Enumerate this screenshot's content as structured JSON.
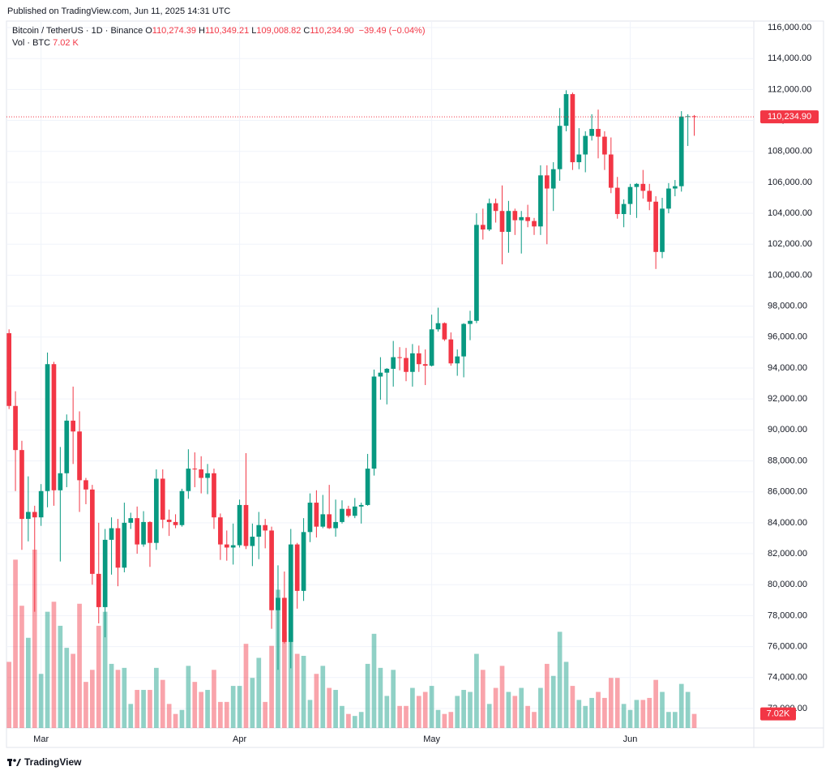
{
  "chart_data": {
    "type": "candlestick",
    "published": "Published on TradingView.com, Jun 11, 2025 14:31 UTC",
    "title": "Bitcoin / TetherUS · 1D · Binance",
    "ohlc_legend": [
      {
        "key": "O",
        "value": 110274.39,
        "label": "110,274.39"
      },
      {
        "key": "H",
        "value": 110349.21,
        "label": "110,349.21"
      },
      {
        "key": "L",
        "value": 109008.82,
        "label": "109,008.82"
      },
      {
        "key": "C",
        "value": 110234.9,
        "label": "110,234.90"
      }
    ],
    "change": {
      "value": -39.49,
      "label": "−39.49"
    },
    "change_pct": {
      "value": -0.04,
      "label": "(−0.04%)"
    },
    "volume_title": "Vol · BTC",
    "volume_label": {
      "value": 7.02,
      "label": "7.02 K"
    },
    "volume_axis_label": {
      "value": 7.02,
      "label": "7.02K"
    },
    "brand": "TradingView",
    "up_color": "#089981",
    "down_color": "#f23645",
    "grid": true,
    "xlim": [
      -0.4,
      116.3
    ],
    "xticks": [
      {
        "value": 5,
        "label": "Mar"
      },
      {
        "value": 36,
        "label": "Apr"
      },
      {
        "value": 66,
        "label": "May"
      },
      {
        "value": 97,
        "label": "Jun"
      }
    ],
    "ylim": [
      70740,
      116420
    ],
    "yticks": [
      {
        "value": 72000,
        "label": "72,000.00"
      },
      {
        "value": 74000,
        "label": "74,000.00"
      },
      {
        "value": 76000,
        "label": "76,000.00"
      },
      {
        "value": 78000,
        "label": "78,000.00"
      },
      {
        "value": 80000,
        "label": "80,000.00"
      },
      {
        "value": 82000,
        "label": "82,000.00"
      },
      {
        "value": 84000,
        "label": "84,000.00"
      },
      {
        "value": 86000,
        "label": "86,000.00"
      },
      {
        "value": 88000,
        "label": "88,000.00"
      },
      {
        "value": 90000,
        "label": "90,000.00"
      },
      {
        "value": 92000,
        "label": "92,000.00"
      },
      {
        "value": 94000,
        "label": "94,000.00"
      },
      {
        "value": 96000,
        "label": "96,000.00"
      },
      {
        "value": 98000,
        "label": "98,000.00"
      },
      {
        "value": 100000,
        "label": "100,000.00"
      },
      {
        "value": 102000,
        "label": "102,000.00"
      },
      {
        "value": 104000,
        "label": "104,000.00"
      },
      {
        "value": 106000,
        "label": "106,000.00"
      },
      {
        "value": 108000,
        "label": "108,000.00"
      },
      {
        "value": 110000,
        "label": "110,000.00"
      },
      {
        "value": 112000,
        "label": "112,000.00"
      },
      {
        "value": 114000,
        "label": "114,000.00"
      },
      {
        "value": 116000,
        "label": "116,000.00"
      }
    ],
    "open": [
      96250,
      91550,
      88700,
      84250,
      84700,
      84350,
      86050,
      94250,
      86100,
      87200,
      90600,
      89900,
      86750,
      86150,
      80700,
      78550,
      82900,
      83650,
      81100,
      84000,
      84300,
      82600,
      84050,
      82700,
      86850,
      84200,
      84050,
      83850,
      86050,
      87500,
      87450,
      86900,
      87200,
      84350,
      82600,
      82400,
      82550,
      85150,
      82500,
      83100,
      83850,
      83500,
      78350,
      79150,
      76300,
      82600,
      79600,
      83400,
      85300,
      83750,
      84550,
      83650,
      84050,
      84900,
      84450,
      85050,
      85150,
      87500,
      93450,
      93700,
      93950,
      94700,
      94650,
      93750,
      94950,
      94250,
      94150,
      96500,
      96900,
      95850,
      94300,
      94750,
      96850,
      97050,
      103250,
      102950,
      104650,
      104150,
      102800,
      104150,
      103550,
      103750,
      103500,
      103150,
      106450,
      105600,
      106850,
      109650,
      111700,
      107300,
      107800,
      109000,
      109450,
      108950,
      107800,
      105650,
      103950,
      104600,
      105700,
      105900,
      105450,
      104750,
      101500,
      104300,
      105600,
      105750,
      110250,
      110274.39
    ],
    "high": [
      96500,
      92500,
      89300,
      87000,
      85100,
      86500,
      95000,
      94400,
      88900,
      91000,
      92800,
      91200,
      86900,
      86450,
      84000,
      83600,
      84350,
      84250,
      85300,
      84650,
      85050,
      84750,
      84100,
      87450,
      87450,
      84850,
      84550,
      86200,
      88750,
      88550,
      88300,
      87800,
      87500,
      84600,
      83500,
      83950,
      85500,
      88500,
      83950,
      84700,
      84250,
      83750,
      81250,
      80850,
      83600,
      82700,
      84300,
      85900,
      86100,
      85800,
      86450,
      85500,
      85450,
      85100,
      85600,
      85300,
      88450,
      93900,
      94700,
      94000,
      95750,
      95350,
      95300,
      95550,
      95450,
      95200,
      97450,
      97900,
      96950,
      96300,
      95200,
      96900,
      97700,
      104000,
      104300,
      104950,
      104950,
      105800,
      104800,
      104300,
      104150,
      104550,
      103700,
      107100,
      107100,
      107300,
      110800,
      111950,
      111800,
      109500,
      109300,
      110400,
      110700,
      109300,
      108900,
      106350,
      104900,
      105900,
      105950,
      106800,
      105900,
      105100,
      105000,
      105950,
      106150,
      110600,
      110400,
      110349.21
    ],
    "low": [
      91350,
      86050,
      82250,
      82800,
      78250,
      83800,
      85000,
      85100,
      81500,
      86300,
      87800,
      84700,
      85200,
      80000,
      77500,
      76600,
      80650,
      79900,
      80800,
      83600,
      82000,
      82450,
      81150,
      82250,
      83650,
      83150,
      83650,
      83750,
      85550,
      86300,
      85900,
      85850,
      83600,
      81600,
      81550,
      81300,
      82400,
      82300,
      81200,
      81650,
      82350,
      77150,
      74500,
      76200,
      74600,
      78450,
      78950,
      82750,
      83050,
      83650,
      83600,
      83100,
      83950,
      84350,
      84300,
      83950,
      85100,
      87050,
      91950,
      91650,
      92800,
      93850,
      93150,
      92800,
      93750,
      92900,
      94100,
      96350,
      95750,
      94150,
      93500,
      93400,
      95800,
      96900,
      102300,
      102850,
      103400,
      100700,
      101450,
      102600,
      101400,
      103100,
      102600,
      102600,
      102000,
      104150,
      106100,
      109300,
      106800,
      106850,
      106650,
      108700,
      107550,
      106800,
      105300,
      103650,
      103100,
      103900,
      103700,
      104950,
      104200,
      100400,
      101100,
      104000,
      105100,
      105400,
      108350,
      109008.82
    ],
    "close": [
      91550,
      88700,
      84250,
      84700,
      84350,
      86050,
      94250,
      86100,
      87200,
      90600,
      89900,
      86750,
      86150,
      80700,
      78550,
      82900,
      83650,
      81100,
      84000,
      84300,
      82600,
      84050,
      82700,
      86850,
      84200,
      84050,
      83850,
      86050,
      87500,
      87450,
      86900,
      87200,
      84350,
      82600,
      82400,
      82550,
      85150,
      82500,
      83100,
      83850,
      83500,
      78350,
      79150,
      76300,
      82600,
      79600,
      83400,
      85300,
      83750,
      84550,
      83650,
      84050,
      84900,
      84450,
      85050,
      85150,
      87500,
      93450,
      93700,
      93950,
      94700,
      94650,
      93750,
      94950,
      94250,
      94150,
      96500,
      96900,
      95850,
      94300,
      94750,
      96850,
      97050,
      103250,
      102950,
      104650,
      104150,
      102800,
      104150,
      103550,
      103750,
      103500,
      103150,
      106450,
      105600,
      106850,
      109650,
      111700,
      107300,
      107800,
      109000,
      109450,
      108950,
      107800,
      105650,
      103950,
      104600,
      105700,
      105900,
      105450,
      104750,
      101500,
      104300,
      105600,
      105750,
      110250,
      110274.39,
      110234.9
    ],
    "volume": [
      33,
      84,
      61,
      45,
      89,
      27,
      58,
      63,
      51,
      40,
      37,
      62,
      23,
      29,
      51,
      58,
      32,
      29,
      30,
      12,
      19,
      19,
      19,
      30,
      24,
      12,
      7,
      9,
      31,
      23,
      18,
      19,
      29,
      13,
      13,
      21,
      21,
      42,
      25,
      35,
      13,
      41,
      69,
      48,
      73,
      37,
      36,
      14,
      27,
      31,
      20,
      19,
      11,
      7,
      6,
      8,
      32,
      47,
      30,
      16,
      29,
      11,
      11,
      20,
      16,
      18,
      21,
      9,
      7,
      8,
      16,
      19,
      18,
      37,
      29,
      12,
      20,
      31,
      18,
      16,
      20,
      11,
      8,
      20,
      32,
      26,
      48,
      33,
      21,
      14,
      11,
      15,
      18,
      15,
      25,
      25,
      12,
      9,
      14,
      14,
      15,
      24,
      18,
      8,
      8,
      22,
      18,
      7.02
    ]
  }
}
